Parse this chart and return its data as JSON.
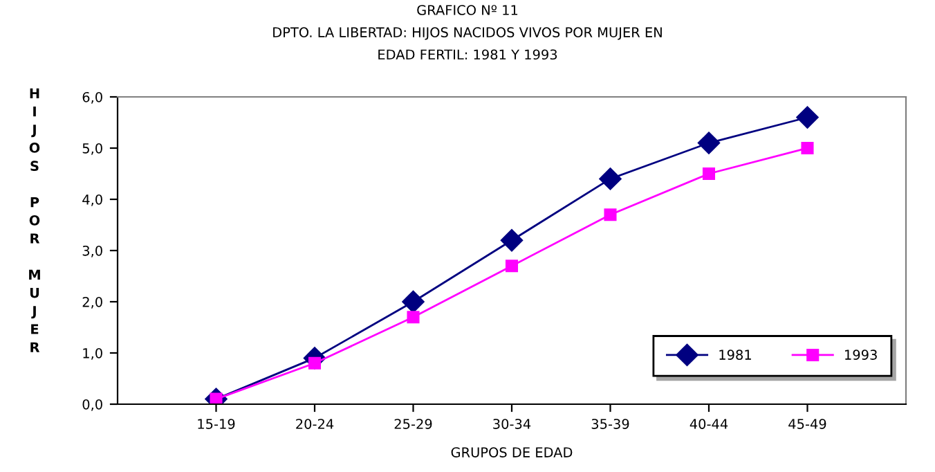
{
  "chart_data": {
    "type": "line",
    "title": "GRAFICO Nº 11\nDPTO. LA LIBERTAD: HIJOS NACIDOS VIVOS POR MUJER EN\nEDAD FERTIL: 1981 Y 1993",
    "xlabel": "GRUPOS DE EDAD",
    "ylabel": "HIJOS POR MUJER",
    "categories": [
      "15-19",
      "20-24",
      "25-29",
      "30-34",
      "35-39",
      "40-44",
      "45-49"
    ],
    "series": [
      {
        "name": "1981",
        "color": "#000080",
        "marker": "diamond",
        "values": [
          0.1,
          0.9,
          2.0,
          3.2,
          4.4,
          5.1,
          5.6
        ]
      },
      {
        "name": "1993",
        "color": "#ff00ff",
        "marker": "square",
        "values": [
          0.1,
          0.8,
          1.7,
          2.7,
          3.7,
          4.5,
          5.0
        ]
      }
    ],
    "ylim": [
      0,
      6
    ],
    "yticks": [
      {
        "value": 0,
        "label": "0,0"
      },
      {
        "value": 1,
        "label": "1,0"
      },
      {
        "value": 2,
        "label": "2,0"
      },
      {
        "value": 3,
        "label": "3,0"
      },
      {
        "value": 4,
        "label": "4,0"
      },
      {
        "value": 5,
        "label": "5,0"
      },
      {
        "value": 6,
        "label": "6,0"
      }
    ],
    "grid": false,
    "legend": "bottom right",
    "line_style": "solid"
  }
}
